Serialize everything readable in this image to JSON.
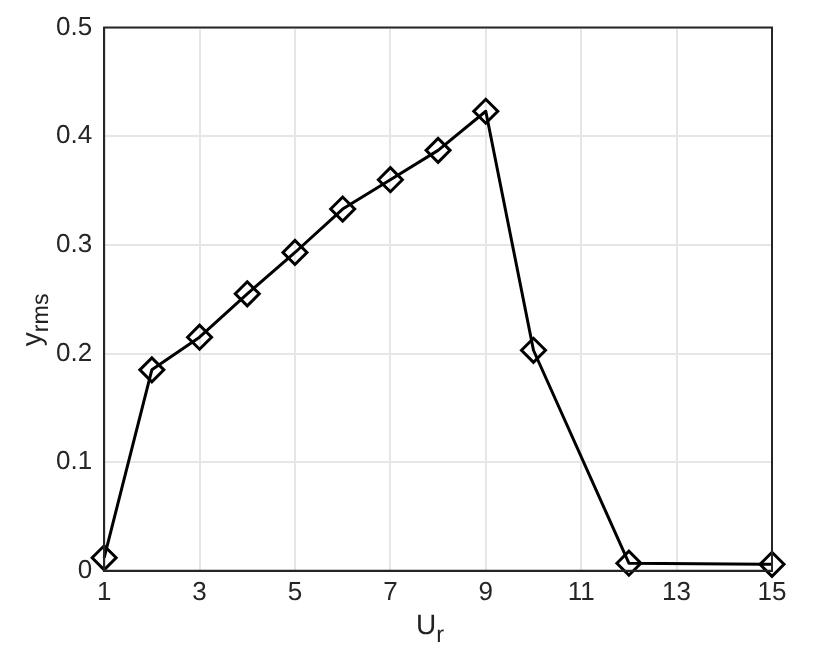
{
  "chart_data": {
    "type": "line",
    "xlabel": "U$_{r}$",
    "ylabel": "y$_{rms}$",
    "x": [
      1,
      2,
      3,
      4,
      5,
      6,
      7,
      8,
      9,
      10,
      12,
      15
    ],
    "series": [
      {
        "color": "#000000",
        "values": [
          0.012,
          0.185,
          0.215,
          0.255,
          0.293,
          0.333,
          0.36,
          0.387,
          0.423,
          0.203,
          0.007,
          0.006
        ]
      }
    ],
    "xlim": [
      1,
      15
    ],
    "xticks": [
      1,
      3,
      5,
      7,
      9,
      11,
      13,
      15
    ],
    "ylim": [
      0,
      0.5
    ],
    "yticks": [
      0,
      0.1,
      0.2,
      0.3,
      0.4,
      0.5
    ],
    "grid": true,
    "marker": "diamond",
    "line_style": "solid"
  }
}
